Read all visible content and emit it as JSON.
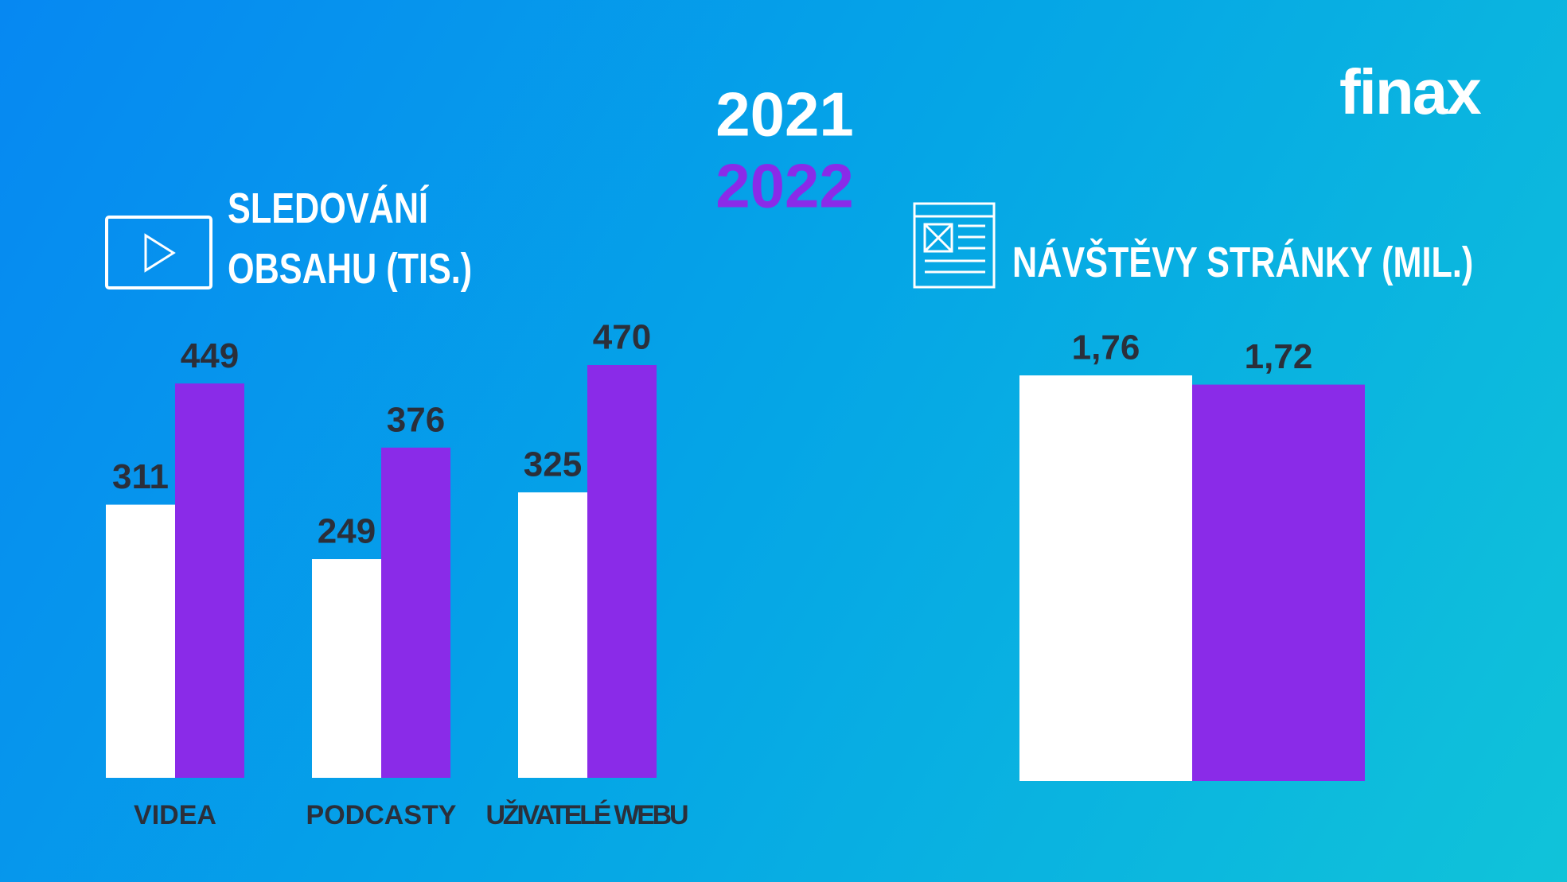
{
  "logo": "finax",
  "chart_data": [
    {
      "type": "bar",
      "title": "SLEDOVÁNÍ OBSAHU (TIS.)",
      "categories": [
        "VIDEA",
        "PODCASTY",
        "UŽIVATELÉ WEBU"
      ],
      "series": [
        {
          "name": "2021",
          "color": "#ffffff",
          "values": [
            311,
            249,
            325
          ]
        },
        {
          "name": "2022",
          "color": "#8a2be8",
          "values": [
            449,
            376,
            470
          ]
        }
      ]
    },
    {
      "type": "bar",
      "title": "NÁVŠTĚVY STRÁNKY (MIL.)",
      "categories": [
        null
      ],
      "series": [
        {
          "color": "#ffffff",
          "values": [
            1.76
          ],
          "value_labels": [
            "1,76"
          ]
        },
        {
          "color": "#8a2be8",
          "values": [
            1.72
          ],
          "value_labels": [
            "1,72"
          ]
        }
      ]
    }
  ]
}
